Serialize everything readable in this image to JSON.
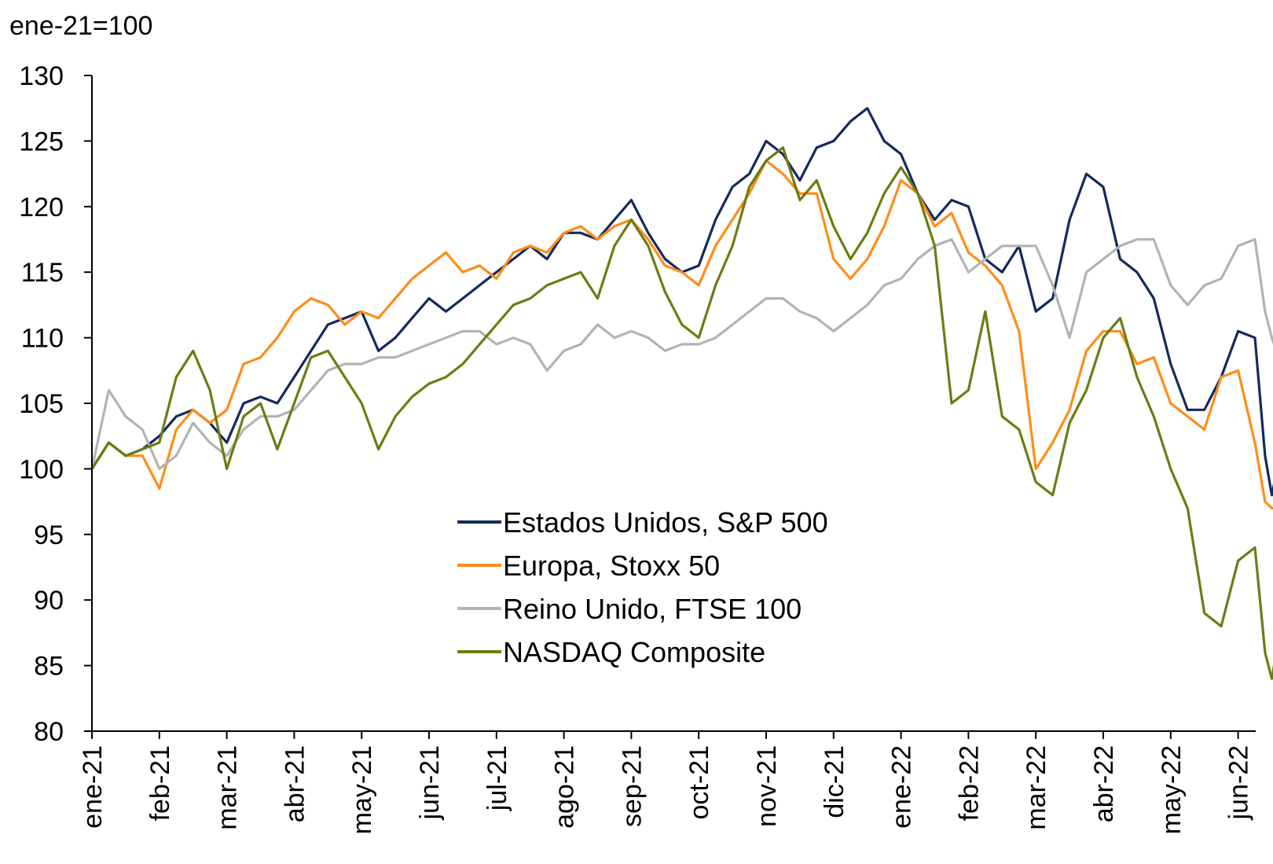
{
  "chart_data": {
    "type": "line",
    "unit_label": "ene-21=100",
    "ylim": [
      80,
      130
    ],
    "yticks": [
      80,
      85,
      90,
      95,
      100,
      105,
      110,
      115,
      120,
      125,
      130
    ],
    "x_labels": [
      "ene-21",
      "feb-21",
      "mar-21",
      "abr-21",
      "may-21",
      "jun-21",
      "jul-21",
      "ago-21",
      "sep-21",
      "oct-21",
      "nov-21",
      "dic-21",
      "ene-22",
      "feb-22",
      "mar-22",
      "abr-22",
      "may-22",
      "jun-22"
    ],
    "x_end": 17.6,
    "grid": false,
    "legend_position": "center-bottom",
    "series": [
      {
        "name": "Estados Unidos, S&P 500",
        "color": "#142a5c",
        "x": [
          0,
          0.25,
          0.5,
          0.75,
          1,
          1.25,
          1.5,
          1.75,
          2,
          2.25,
          2.5,
          2.75,
          3,
          3.25,
          3.5,
          3.75,
          4,
          4.25,
          4.5,
          4.75,
          5,
          5.25,
          5.5,
          5.75,
          6,
          6.25,
          6.5,
          6.75,
          7,
          7.25,
          7.5,
          7.75,
          8,
          8.25,
          8.5,
          8.75,
          9,
          9.25,
          9.5,
          9.75,
          10,
          10.25,
          10.5,
          10.75,
          11,
          11.25,
          11.5,
          11.75,
          12,
          12.25,
          12.5,
          12.75,
          13,
          13.25,
          13.5,
          13.75,
          14,
          14.25,
          14.5,
          14.75,
          15,
          15.25,
          15.5,
          15.75,
          16,
          16.25,
          16.5,
          16.75,
          17,
          17.25,
          17.4,
          17.5,
          17.6
        ],
        "values": [
          100,
          102,
          101,
          101.5,
          102.5,
          104,
          104.5,
          103.5,
          102,
          105,
          105.5,
          105,
          107,
          109,
          111,
          111.5,
          112,
          109,
          110,
          111.5,
          113,
          112,
          113,
          114,
          115,
          116,
          117,
          116,
          118,
          118,
          117.5,
          119,
          120.5,
          118,
          116,
          115,
          115.5,
          119,
          121.5,
          122.5,
          125,
          124,
          122,
          124.5,
          125,
          126.5,
          127.5,
          125,
          124,
          121,
          119,
          120.5,
          120,
          116,
          115,
          117,
          112,
          113,
          119,
          122.5,
          121.5,
          116,
          115,
          113,
          108,
          104.5,
          104.5,
          107,
          110.5,
          110,
          101,
          98,
          100.5
        ]
      },
      {
        "name": "Europa, Stoxx 50",
        "color": "#ff8c19",
        "x": [
          0,
          0.25,
          0.5,
          0.75,
          1,
          1.25,
          1.5,
          1.75,
          2,
          2.25,
          2.5,
          2.75,
          3,
          3.25,
          3.5,
          3.75,
          4,
          4.25,
          4.5,
          4.75,
          5,
          5.25,
          5.5,
          5.75,
          6,
          6.25,
          6.5,
          6.75,
          7,
          7.25,
          7.5,
          7.75,
          8,
          8.25,
          8.5,
          8.75,
          9,
          9.25,
          9.5,
          9.75,
          10,
          10.25,
          10.5,
          10.75,
          11,
          11.25,
          11.5,
          11.75,
          12,
          12.25,
          12.5,
          12.75,
          13,
          13.25,
          13.5,
          13.75,
          14,
          14.25,
          14.5,
          14.75,
          15,
          15.25,
          15.5,
          15.75,
          16,
          16.25,
          16.5,
          16.75,
          17,
          17.25,
          17.4,
          17.5,
          17.6
        ],
        "values": [
          100,
          102,
          101,
          101,
          98.5,
          103,
          104.5,
          103.5,
          104.5,
          108,
          108.5,
          110,
          112,
          113,
          112.5,
          111,
          112,
          111.5,
          113,
          114.5,
          115.5,
          116.5,
          115,
          115.5,
          114.5,
          116.5,
          117,
          116.5,
          118,
          118.5,
          117.5,
          118.5,
          119,
          117.5,
          115.5,
          115,
          114,
          117,
          119,
          121,
          123.5,
          122.5,
          121,
          121,
          116,
          114.5,
          116,
          118.5,
          122,
          121,
          118.5,
          119.5,
          116.5,
          115.5,
          114,
          110.5,
          100,
          102,
          104.5,
          109,
          110.5,
          110.5,
          108,
          108.5,
          105,
          104,
          103,
          107,
          107.5,
          102,
          97.5,
          97,
          97
        ]
      },
      {
        "name": "Reino Unido, FTSE 100",
        "color": "#b3b3b3",
        "x": [
          0,
          0.25,
          0.5,
          0.75,
          1,
          1.25,
          1.5,
          1.75,
          2,
          2.25,
          2.5,
          2.75,
          3,
          3.25,
          3.5,
          3.75,
          4,
          4.25,
          4.5,
          4.75,
          5,
          5.25,
          5.5,
          5.75,
          6,
          6.25,
          6.5,
          6.75,
          7,
          7.25,
          7.5,
          7.75,
          8,
          8.25,
          8.5,
          8.75,
          9,
          9.25,
          9.5,
          9.75,
          10,
          10.25,
          10.5,
          10.75,
          11,
          11.25,
          11.5,
          11.75,
          12,
          12.25,
          12.5,
          12.75,
          13,
          13.25,
          13.5,
          13.75,
          14,
          14.25,
          14.5,
          14.75,
          15,
          15.25,
          15.5,
          15.75,
          16,
          16.25,
          16.5,
          16.75,
          17,
          17.25,
          17.4,
          17.5,
          17.6
        ],
        "values": [
          100,
          106,
          104,
          103,
          100,
          101,
          103.5,
          102,
          101,
          103,
          104,
          104,
          104.5,
          106,
          107.5,
          108,
          108,
          108.5,
          108.5,
          109,
          109.5,
          110,
          110.5,
          110.5,
          109.5,
          110,
          109.5,
          107.5,
          109,
          109.5,
          111,
          110,
          110.5,
          110,
          109,
          109.5,
          109.5,
          110,
          111,
          112,
          113,
          113,
          112,
          111.5,
          110.5,
          111.5,
          112.5,
          114,
          114.5,
          116,
          117,
          117.5,
          115,
          116,
          117,
          117,
          117,
          114,
          110,
          115,
          116,
          117,
          117.5,
          117.5,
          114,
          112.5,
          114,
          114.5,
          117,
          117.5,
          112,
          110,
          108.5
        ]
      },
      {
        "name": "NASDAQ Composite",
        "color": "#6b7d12",
        "x": [
          0,
          0.25,
          0.5,
          0.75,
          1,
          1.25,
          1.5,
          1.75,
          2,
          2.25,
          2.5,
          2.75,
          3,
          3.25,
          3.5,
          3.75,
          4,
          4.25,
          4.5,
          4.75,
          5,
          5.25,
          5.5,
          5.75,
          6,
          6.25,
          6.5,
          6.75,
          7,
          7.25,
          7.5,
          7.75,
          8,
          8.25,
          8.5,
          8.75,
          9,
          9.25,
          9.5,
          9.75,
          10,
          10.25,
          10.5,
          10.75,
          11,
          11.25,
          11.5,
          11.75,
          12,
          12.25,
          12.5,
          12.75,
          13,
          13.25,
          13.5,
          13.75,
          14,
          14.25,
          14.5,
          14.75,
          15,
          15.25,
          15.5,
          15.75,
          16,
          16.25,
          16.5,
          16.75,
          17,
          17.25,
          17.4,
          17.5,
          17.6
        ],
        "values": [
          100,
          102,
          101,
          101.5,
          102,
          107,
          109,
          106,
          100,
          104,
          105,
          101.5,
          105,
          108.5,
          109,
          107,
          105,
          101.5,
          104,
          105.5,
          106.5,
          107,
          108,
          109.5,
          111,
          112.5,
          113,
          114,
          114.5,
          115,
          113,
          117,
          119,
          117,
          113.5,
          111,
          110,
          114,
          117,
          121.5,
          123.5,
          124.5,
          120.5,
          122,
          118.5,
          116,
          118,
          121,
          123,
          121,
          117,
          105,
          106,
          112,
          104,
          103,
          99,
          98,
          103.5,
          106,
          110,
          111.5,
          107,
          104,
          100,
          97,
          89,
          88,
          93,
          94,
          86,
          84,
          87
        ]
      }
    ]
  }
}
